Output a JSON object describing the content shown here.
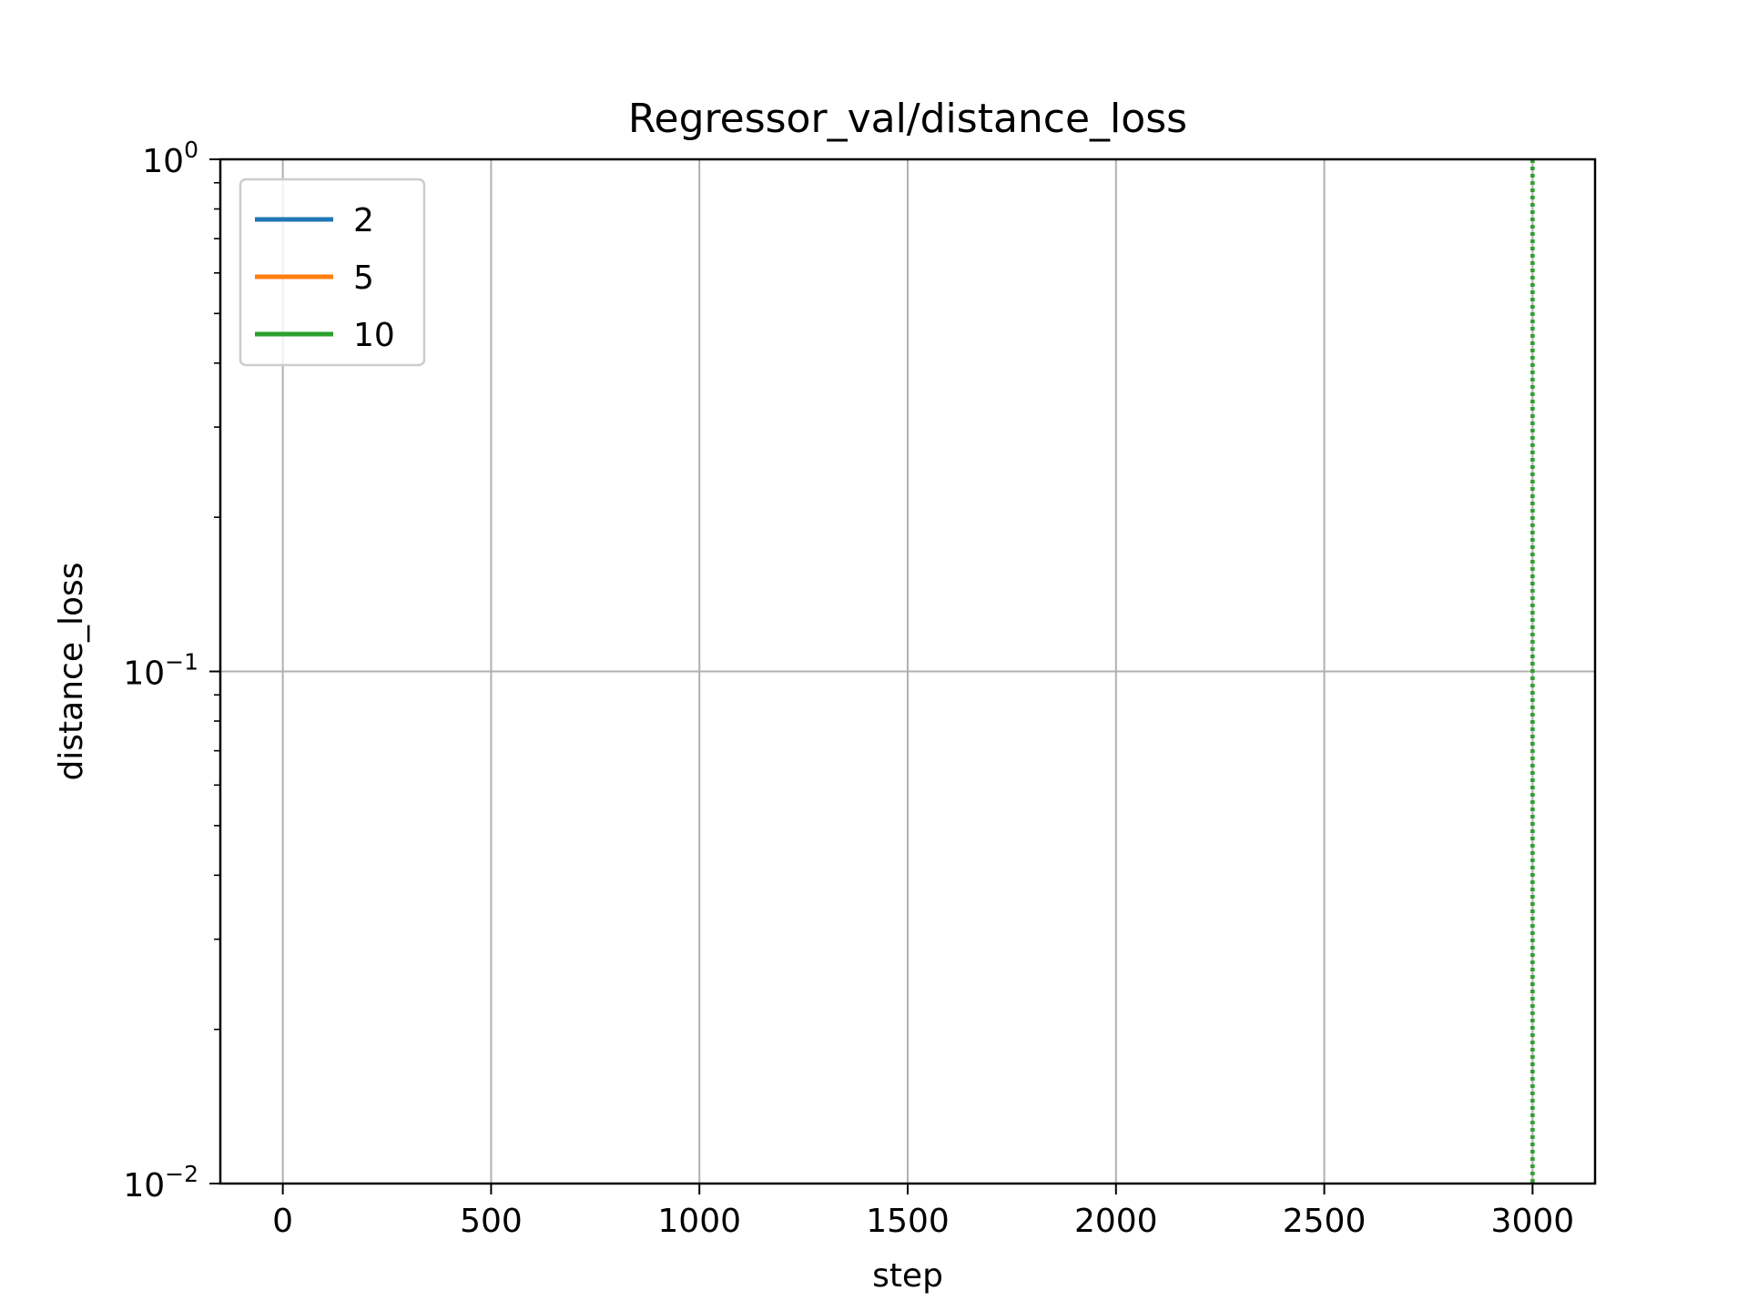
{
  "chart_data": {
    "type": "line",
    "title": "Regressor_val/distance_loss",
    "xlabel": "step",
    "ylabel": "distance_loss",
    "xlim": [
      -150,
      3150
    ],
    "ylim": [
      0.01,
      1
    ],
    "yscale": "log",
    "grid": true,
    "legend_position": "upper-left",
    "xticks": [
      0,
      500,
      1000,
      1500,
      2000,
      2500,
      3000
    ],
    "yticks": [
      {
        "value": 1,
        "base": "10",
        "exp": "0"
      },
      {
        "value": 0.1,
        "base": "10",
        "exp": "−1"
      },
      {
        "value": 0.01,
        "base": "10",
        "exp": "−2"
      }
    ],
    "series": [
      {
        "name": "2",
        "color": "#1f77b4"
      },
      {
        "name": "5",
        "color": "#ff7f0e"
      },
      {
        "name": "10",
        "color": "#2ca02c"
      }
    ],
    "vertical_markers": [
      {
        "x": 3000,
        "color": "#2ca02c",
        "style": "dotted"
      }
    ]
  }
}
